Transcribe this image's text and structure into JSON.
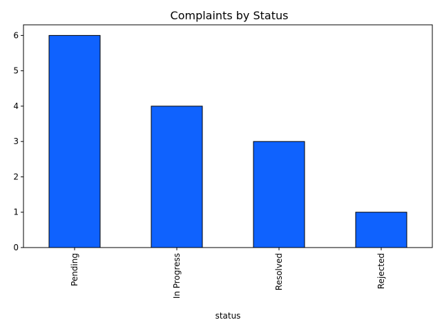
{
  "chart_data": {
    "type": "bar",
    "title": "Complaints by Status",
    "xlabel": "status",
    "ylabel": "",
    "categories": [
      "Pending",
      "In Progress",
      "Resolved",
      "Rejected"
    ],
    "values": [
      6,
      4,
      3,
      1
    ],
    "ylim": [
      0,
      6.3
    ],
    "yticks": [
      0,
      1,
      2,
      3,
      4,
      5,
      6
    ],
    "grid": false,
    "legend": "none",
    "colors": {
      "bar_fill": "#0f62fe",
      "bar_edge": "#000000",
      "axis": "#000000",
      "background": "#ffffff"
    }
  }
}
